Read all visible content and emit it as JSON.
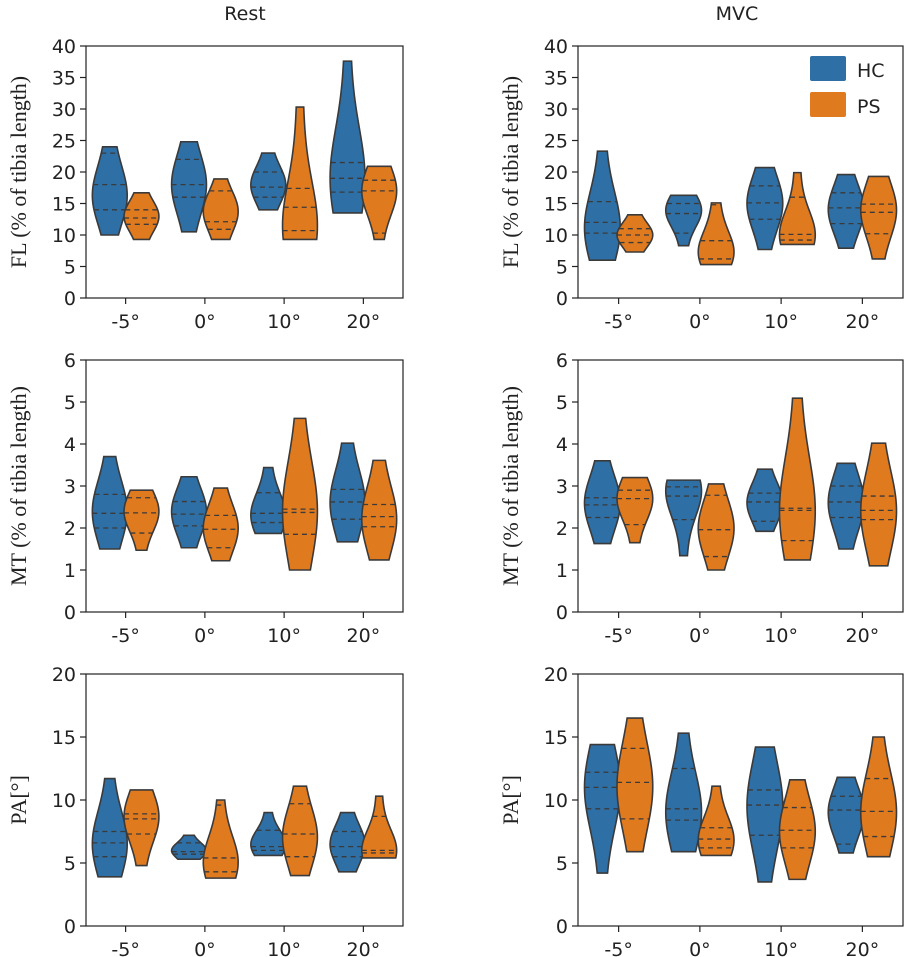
{
  "colors": {
    "HC": "#2e6fa5",
    "PS": "#e07a1f"
  },
  "legend": [
    {
      "key": "HC",
      "label": "HC"
    },
    {
      "key": "PS",
      "label": "PS"
    }
  ],
  "columns": [
    {
      "title": "Rest"
    },
    {
      "title": "MVC"
    }
  ],
  "chart_data": [
    {
      "type": "violin",
      "column": "Rest",
      "ylabel": "FL (% of tibia length)",
      "ylim": [
        0,
        40
      ],
      "yticks": [
        0,
        5,
        10,
        15,
        20,
        25,
        30,
        35,
        40
      ],
      "categories": [
        "-5°",
        "0°",
        "10°",
        "20°"
      ],
      "series": [
        {
          "name": "HC",
          "values": [
            {
              "min": 10,
              "max": 24,
              "q1": 14,
              "median": 18,
              "q3": 23,
              "mode": 16
            },
            {
              "min": 10.5,
              "max": 24.8,
              "q1": 16,
              "median": 18,
              "q3": 22,
              "mode": 18
            },
            {
              "min": 14,
              "max": 23,
              "q1": 16,
              "median": 17.6,
              "q3": 20,
              "mode": 18
            },
            {
              "min": 13.5,
              "max": 37.6,
              "q1": 16.8,
              "median": 19,
              "q3": 21.5,
              "mode": 19
            }
          ]
        },
        {
          "name": "PS",
          "values": [
            {
              "min": 9.3,
              "max": 16.7,
              "q1": 11.7,
              "median": 12.7,
              "q3": 14,
              "mode": 13
            },
            {
              "min": 9.3,
              "max": 18.9,
              "q1": 10.9,
              "median": 12.1,
              "q3": 17,
              "mode": 14
            },
            {
              "min": 9.3,
              "max": 30.3,
              "q1": 10.7,
              "median": 14.4,
              "q3": 17.4,
              "mode": 11
            },
            {
              "min": 9.3,
              "max": 20.9,
              "q1": 10.3,
              "median": 17,
              "q3": 18.7,
              "mode": 17
            }
          ]
        }
      ]
    },
    {
      "type": "violin",
      "column": "MVC",
      "ylabel": "FL (% of tibia length)",
      "ylim": [
        0,
        40
      ],
      "yticks": [
        0,
        5,
        10,
        15,
        20,
        25,
        30,
        35,
        40
      ],
      "categories": [
        "-5°",
        "0°",
        "10°",
        "20°"
      ],
      "series": [
        {
          "name": "HC",
          "values": [
            {
              "min": 6,
              "max": 23.3,
              "q1": 10.3,
              "median": 12,
              "q3": 15.3,
              "mode": 11
            },
            {
              "min": 8.3,
              "max": 16.3,
              "q1": 10.3,
              "median": 13.4,
              "q3": 15,
              "mode": 14
            },
            {
              "min": 7.7,
              "max": 20.7,
              "q1": 12.5,
              "median": 15.1,
              "q3": 17.8,
              "mode": 15
            },
            {
              "min": 7.9,
              "max": 19.6,
              "q1": 11.8,
              "median": 14.3,
              "q3": 16.7,
              "mode": 14
            }
          ]
        },
        {
          "name": "PS",
          "values": [
            {
              "min": 7.3,
              "max": 13.2,
              "q1": 8.8,
              "median": 10,
              "q3": 11,
              "mode": 10
            },
            {
              "min": 5.3,
              "max": 15.1,
              "q1": 6.2,
              "median": 9.1,
              "q3": 14.8,
              "mode": 7
            },
            {
              "min": 8.5,
              "max": 19.9,
              "q1": 9.2,
              "median": 10.1,
              "q3": 16,
              "mode": 10
            },
            {
              "min": 6.2,
              "max": 19.3,
              "q1": 10.2,
              "median": 13.6,
              "q3": 14.9,
              "mode": 14
            }
          ]
        }
      ]
    },
    {
      "type": "violin",
      "column": "Rest",
      "ylabel": "MT (% of tibia length)",
      "ylim": [
        0,
        6
      ],
      "yticks": [
        0,
        1,
        2,
        3,
        4,
        5,
        6
      ],
      "categories": [
        "-5°",
        "0°",
        "10°",
        "20°"
      ],
      "series": [
        {
          "name": "HC",
          "values": [
            {
              "min": 1.5,
              "max": 3.7,
              "q1": 2.0,
              "median": 2.35,
              "q3": 2.8,
              "mode": 2.4
            },
            {
              "min": 1.53,
              "max": 3.22,
              "q1": 2.05,
              "median": 2.33,
              "q3": 2.63,
              "mode": 2.4
            },
            {
              "min": 1.87,
              "max": 3.44,
              "q1": 2.13,
              "median": 2.35,
              "q3": 2.84,
              "mode": 2.3
            },
            {
              "min": 1.67,
              "max": 4.02,
              "q1": 2.21,
              "median": 2.62,
              "q3": 2.92,
              "mode": 2.6
            }
          ]
        },
        {
          "name": "PS",
          "values": [
            {
              "min": 1.47,
              "max": 2.9,
              "q1": 1.88,
              "median": 2.36,
              "q3": 2.72,
              "mode": 2.4
            },
            {
              "min": 1.22,
              "max": 2.95,
              "q1": 1.53,
              "median": 1.97,
              "q3": 2.3,
              "mode": 2.0
            },
            {
              "min": 1.0,
              "max": 4.61,
              "q1": 1.85,
              "median": 2.37,
              "q3": 2.45,
              "mode": 2.4
            },
            {
              "min": 1.24,
              "max": 3.61,
              "q1": 2.03,
              "median": 2.27,
              "q3": 2.56,
              "mode": 2.2
            }
          ]
        }
      ]
    },
    {
      "type": "violin",
      "column": "MVC",
      "ylabel": "MT (% of tibia length)",
      "ylim": [
        0,
        6
      ],
      "yticks": [
        0,
        1,
        2,
        3,
        4,
        5,
        6
      ],
      "categories": [
        "-5°",
        "0°",
        "10°",
        "20°"
      ],
      "series": [
        {
          "name": "HC",
          "values": [
            {
              "min": 1.63,
              "max": 3.6,
              "q1": 2.25,
              "median": 2.55,
              "q3": 2.72,
              "mode": 2.6
            },
            {
              "min": 1.34,
              "max": 3.14,
              "q1": 2.2,
              "median": 2.76,
              "q3": 2.98,
              "mode": 2.9
            },
            {
              "min": 1.92,
              "max": 3.4,
              "q1": 2.16,
              "median": 2.62,
              "q3": 2.83,
              "mode": 2.6
            },
            {
              "min": 1.5,
              "max": 3.54,
              "q1": 2.25,
              "median": 2.62,
              "q3": 3.0,
              "mode": 2.6
            }
          ]
        },
        {
          "name": "PS",
          "values": [
            {
              "min": 1.65,
              "max": 3.2,
              "q1": 2.08,
              "median": 2.7,
              "q3": 2.9,
              "mode": 2.7
            },
            {
              "min": 1.0,
              "max": 3.05,
              "q1": 1.32,
              "median": 1.96,
              "q3": 2.78,
              "mode": 2.0
            },
            {
              "min": 1.24,
              "max": 5.09,
              "q1": 1.7,
              "median": 2.42,
              "q3": 2.47,
              "mode": 2.4
            },
            {
              "min": 1.1,
              "max": 4.02,
              "q1": 2.2,
              "median": 2.42,
              "q3": 2.76,
              "mode": 2.4
            }
          ]
        }
      ]
    },
    {
      "type": "violin",
      "column": "Rest",
      "ylabel": "PA[°]",
      "ylim": [
        0,
        20
      ],
      "yticks": [
        0,
        5,
        10,
        15,
        20
      ],
      "categories": [
        "-5°",
        "0°",
        "10°",
        "20°"
      ],
      "series": [
        {
          "name": "HC",
          "values": [
            {
              "min": 3.9,
              "max": 11.7,
              "q1": 5.5,
              "median": 6.6,
              "q3": 7.5,
              "mode": 6.5
            },
            {
              "min": 5.3,
              "max": 7.2,
              "q1": 5.7,
              "median": 5.9,
              "q3": 6.6,
              "mode": 6.0
            },
            {
              "min": 5.6,
              "max": 9.0,
              "q1": 6.0,
              "median": 6.3,
              "q3": 7.6,
              "mode": 6.5
            },
            {
              "min": 4.3,
              "max": 9.0,
              "q1": 5.5,
              "median": 6.3,
              "q3": 7.5,
              "mode": 6.5
            }
          ]
        },
        {
          "name": "PS",
          "values": [
            {
              "min": 4.8,
              "max": 10.8,
              "q1": 7.3,
              "median": 8.5,
              "q3": 8.9,
              "mode": 8.7
            },
            {
              "min": 3.8,
              "max": 10.0,
              "q1": 4.3,
              "median": 5.4,
              "q3": 9.6,
              "mode": 5.0
            },
            {
              "min": 4.0,
              "max": 11.1,
              "q1": 5.5,
              "median": 7.3,
              "q3": 9.7,
              "mode": 7.0
            },
            {
              "min": 5.4,
              "max": 10.3,
              "q1": 5.8,
              "median": 6.0,
              "q3": 8.7,
              "mode": 6.0
            }
          ]
        }
      ]
    },
    {
      "type": "violin",
      "column": "MVC",
      "ylabel": "PA[°]",
      "ylim": [
        0,
        20
      ],
      "yticks": [
        0,
        5,
        10,
        15,
        20
      ],
      "categories": [
        "-5°",
        "0°",
        "10°",
        "20°"
      ],
      "series": [
        {
          "name": "HC",
          "values": [
            {
              "min": 4.2,
              "max": 14.4,
              "q1": 9.3,
              "median": 11.0,
              "q3": 12.2,
              "mode": 11.0
            },
            {
              "min": 5.9,
              "max": 15.3,
              "q1": 8.4,
              "median": 9.3,
              "q3": 12.5,
              "mode": 9.0
            },
            {
              "min": 3.5,
              "max": 14.2,
              "q1": 7.2,
              "median": 9.6,
              "q3": 10.8,
              "mode": 9.5
            },
            {
              "min": 5.8,
              "max": 11.8,
              "q1": 6.5,
              "median": 9.2,
              "q3": 10.3,
              "mode": 9.0
            }
          ]
        },
        {
          "name": "PS",
          "values": [
            {
              "min": 5.9,
              "max": 16.5,
              "q1": 8.5,
              "median": 11.4,
              "q3": 14.1,
              "mode": 11.0
            },
            {
              "min": 5.6,
              "max": 11.1,
              "q1": 6.2,
              "median": 6.9,
              "q3": 7.8,
              "mode": 6.8
            },
            {
              "min": 3.7,
              "max": 11.6,
              "q1": 6.2,
              "median": 7.6,
              "q3": 9.4,
              "mode": 7.5
            },
            {
              "min": 5.5,
              "max": 15.0,
              "q1": 7.1,
              "median": 9.1,
              "q3": 11.7,
              "mode": 9.0
            }
          ]
        }
      ]
    }
  ]
}
